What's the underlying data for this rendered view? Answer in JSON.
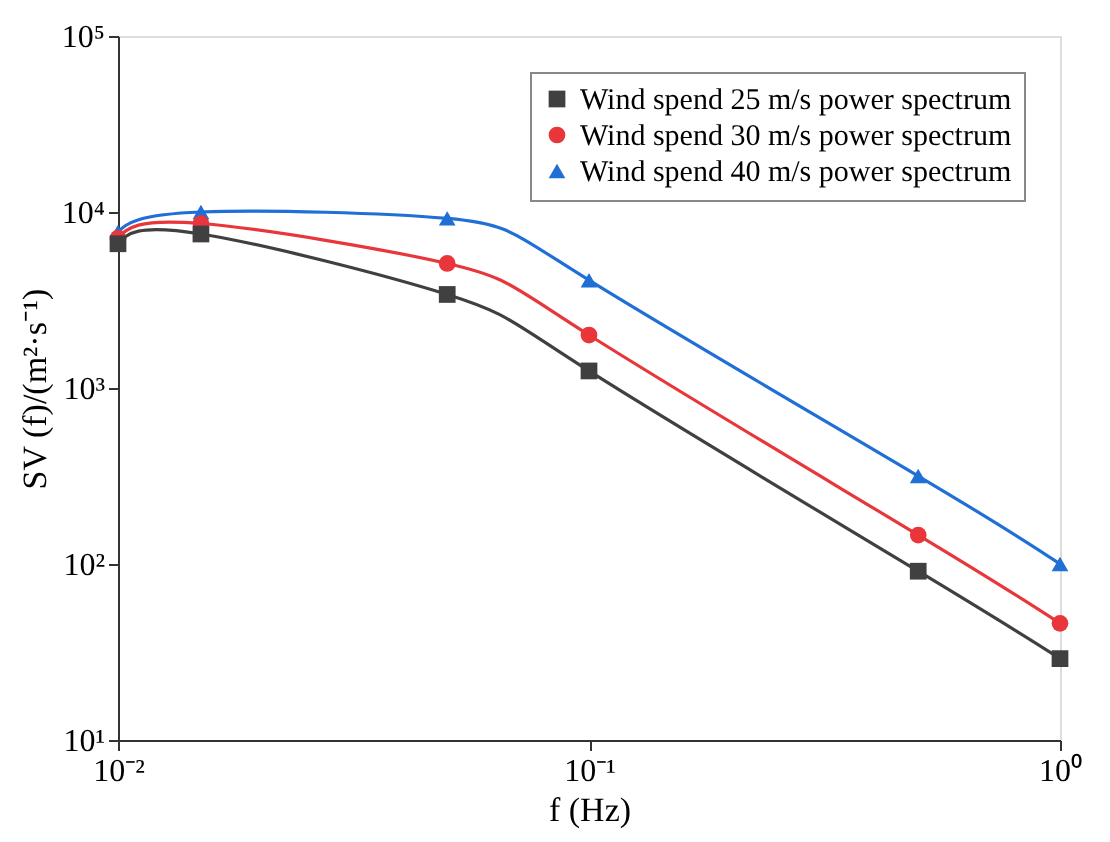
{
  "chart_data": {
    "type": "line",
    "xlabel": "f (Hz)",
    "ylabel": "SV (f)/(m²·s⁻¹)",
    "x": [
      0.01,
      0.015,
      0.05,
      0.1,
      0.5,
      1
    ],
    "series": [
      {
        "name": "Wind spend 25 m/s power spectrum",
        "color": "#404040",
        "marker": "square",
        "values": [
          6600,
          7500,
          3400,
          1250,
          91,
          29
        ]
      },
      {
        "name": "Wind spend 30 m/s power spectrum",
        "color": "#e8363a",
        "marker": "circle",
        "values": [
          7100,
          8600,
          5100,
          2000,
          146,
          46
        ]
      },
      {
        "name": "Wind spend 40 m/s power spectrum",
        "color": "#1f6fd6",
        "marker": "triangle",
        "values": [
          7700,
          10000,
          9200,
          4100,
          316,
          100
        ]
      }
    ],
    "log": "xy",
    "xlim": [
      0.01,
      1
    ],
    "ylim": [
      10,
      100000
    ],
    "xticks": [
      {
        "value": 0.01,
        "label": "10⁻²"
      },
      {
        "value": 0.1,
        "label": "10⁻¹"
      },
      {
        "value": 1,
        "label": "10⁰"
      }
    ],
    "yticks": [
      {
        "value": 10,
        "label": "10¹"
      },
      {
        "value": 100,
        "label": "10²"
      },
      {
        "value": 1000,
        "label": "10³"
      },
      {
        "value": 10000,
        "label": "10⁴"
      },
      {
        "value": 100000,
        "label": "10⁵"
      }
    ],
    "grid": false,
    "legend": "top right",
    "line_style": "solid"
  }
}
